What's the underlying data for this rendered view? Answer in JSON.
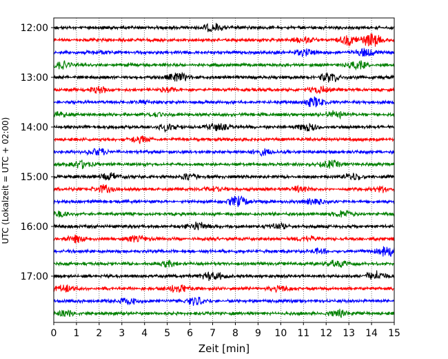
{
  "chart_data": {
    "type": "line",
    "title": "",
    "xlabel": "Zeit  [min]",
    "ylabel": "UTC (Lokalzeit = UTC + 02:00)",
    "xlim": [
      0,
      15
    ],
    "x_ticks": [
      "0",
      "1",
      "2",
      "3",
      "4",
      "5",
      "6",
      "7",
      "8",
      "9",
      "10",
      "11",
      "12",
      "13",
      "14",
      "15"
    ],
    "y_ticks": [
      "12:00",
      "13:00",
      "14:00",
      "15:00",
      "16:00",
      "17:00"
    ],
    "grid": "vertical dotted",
    "legend": "none",
    "trace_interval": "15 min",
    "colors_cycle": [
      "#000000",
      "#ff0000",
      "#0000ff",
      "#008000"
    ],
    "traces": [
      {
        "start": "12:00",
        "color": "#000000",
        "bursts": [
          {
            "t": 7.0,
            "amp": 0.45
          }
        ]
      },
      {
        "start": "12:15",
        "color": "#ff0000",
        "bursts": [
          {
            "t": 11.0,
            "amp": 0.3
          },
          {
            "t": 13.0,
            "amp": 0.5
          },
          {
            "t": 14.0,
            "amp": 0.7
          }
        ]
      },
      {
        "start": "12:30",
        "color": "#0000ff",
        "bursts": [
          {
            "t": 2.0,
            "amp": 0.2
          },
          {
            "t": 11.0,
            "amp": 0.35
          },
          {
            "t": 13.7,
            "amp": 0.45
          }
        ]
      },
      {
        "start": "12:45",
        "color": "#008000",
        "bursts": [
          {
            "t": 0.3,
            "amp": 0.4
          },
          {
            "t": 13.4,
            "amp": 0.4
          }
        ]
      },
      {
        "start": "13:00",
        "color": "#000000",
        "bursts": [
          {
            "t": 5.5,
            "amp": 0.45
          },
          {
            "t": 12.2,
            "amp": 0.5
          }
        ]
      },
      {
        "start": "13:15",
        "color": "#ff0000",
        "bursts": [
          {
            "t": 2.0,
            "amp": 0.3
          },
          {
            "t": 5.0,
            "amp": 0.2
          },
          {
            "t": 11.7,
            "amp": 0.35
          }
        ]
      },
      {
        "start": "13:30",
        "color": "#0000ff",
        "bursts": [
          {
            "t": 4.0,
            "amp": 0.15
          },
          {
            "t": 11.5,
            "amp": 0.5
          }
        ]
      },
      {
        "start": "13:45",
        "color": "#008000",
        "bursts": [
          {
            "t": 0.2,
            "amp": 0.25
          },
          {
            "t": 4.5,
            "amp": 0.2
          },
          {
            "t": 12.4,
            "amp": 0.35
          }
        ]
      },
      {
        "start": "14:00",
        "color": "#000000",
        "bursts": [
          {
            "t": 5.0,
            "amp": 0.4
          },
          {
            "t": 7.2,
            "amp": 0.4
          },
          {
            "t": 11.2,
            "amp": 0.35
          }
        ]
      },
      {
        "start": "14:15",
        "color": "#ff0000",
        "bursts": [
          {
            "t": 3.8,
            "amp": 0.35
          }
        ]
      },
      {
        "start": "14:30",
        "color": "#0000ff",
        "bursts": [
          {
            "t": 1.9,
            "amp": 0.4
          },
          {
            "t": 9.2,
            "amp": 0.3
          }
        ]
      },
      {
        "start": "14:45",
        "color": "#008000",
        "bursts": [
          {
            "t": 1.2,
            "amp": 0.4
          },
          {
            "t": 12.2,
            "amp": 0.35
          }
        ]
      },
      {
        "start": "15:00",
        "color": "#000000",
        "bursts": [
          {
            "t": 2.5,
            "amp": 0.35
          },
          {
            "t": 6.0,
            "amp": 0.4
          },
          {
            "t": 13.2,
            "amp": 0.4
          }
        ]
      },
      {
        "start": "15:15",
        "color": "#ff0000",
        "bursts": [
          {
            "t": 2.2,
            "amp": 0.4
          },
          {
            "t": 7.0,
            "amp": 0.2
          },
          {
            "t": 10.8,
            "amp": 0.3
          },
          {
            "t": 14.5,
            "amp": 0.3
          }
        ]
      },
      {
        "start": "15:30",
        "color": "#0000ff",
        "bursts": [
          {
            "t": 8.1,
            "amp": 0.55
          },
          {
            "t": 11.5,
            "amp": 0.3
          }
        ]
      },
      {
        "start": "15:45",
        "color": "#008000",
        "bursts": [
          {
            "t": 0.3,
            "amp": 0.25
          },
          {
            "t": 12.8,
            "amp": 0.35
          }
        ]
      },
      {
        "start": "16:00",
        "color": "#000000",
        "bursts": [
          {
            "t": 6.3,
            "amp": 0.45
          },
          {
            "t": 9.8,
            "amp": 0.35
          }
        ]
      },
      {
        "start": "16:15",
        "color": "#ff0000",
        "bursts": [
          {
            "t": 1.0,
            "amp": 0.35
          },
          {
            "t": 3.6,
            "amp": 0.3
          },
          {
            "t": 11.2,
            "amp": 0.3
          }
        ]
      },
      {
        "start": "16:30",
        "color": "#0000ff",
        "bursts": [
          {
            "t": 11.8,
            "amp": 0.3
          },
          {
            "t": 14.7,
            "amp": 0.55
          }
        ]
      },
      {
        "start": "16:45",
        "color": "#008000",
        "bursts": [
          {
            "t": 5.0,
            "amp": 0.3
          },
          {
            "t": 12.5,
            "amp": 0.35
          }
        ]
      },
      {
        "start": "17:00",
        "color": "#000000",
        "bursts": [
          {
            "t": 7.0,
            "amp": 0.5
          },
          {
            "t": 14.2,
            "amp": 0.55
          }
        ]
      },
      {
        "start": "17:15",
        "color": "#ff0000",
        "bursts": [
          {
            "t": 0.5,
            "amp": 0.35
          },
          {
            "t": 5.5,
            "amp": 0.45
          },
          {
            "t": 10.0,
            "amp": 0.3
          }
        ]
      },
      {
        "start": "17:30",
        "color": "#0000ff",
        "bursts": [
          {
            "t": 3.3,
            "amp": 0.35
          },
          {
            "t": 6.3,
            "amp": 0.45
          }
        ]
      },
      {
        "start": "17:45",
        "color": "#008000",
        "bursts": [
          {
            "t": 0.5,
            "amp": 0.35
          },
          {
            "t": 12.5,
            "amp": 0.4
          }
        ]
      }
    ]
  }
}
